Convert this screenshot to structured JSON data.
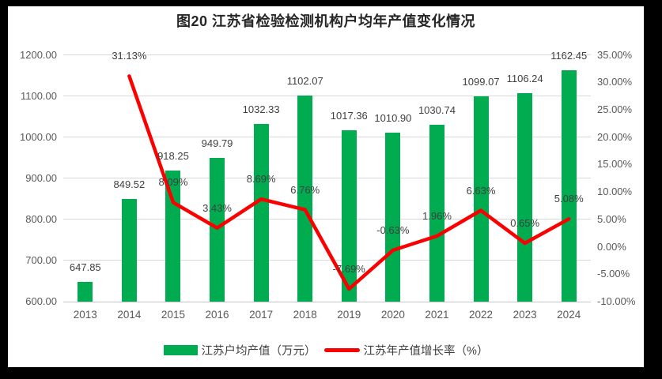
{
  "title": "图20  江苏省检验检测机构户均年产值变化情况",
  "colors": {
    "background": "#000000",
    "canvas": "#ffffff",
    "bar": "#00AC4F",
    "line": "#FB0000",
    "grid": "#d9d9d9",
    "axis_text": "#595959",
    "label_text": "#404040"
  },
  "legend": {
    "items": [
      {
        "label": "江苏户均产值（万元）",
        "type": "bar",
        "color": "#00AC4F"
      },
      {
        "label": "江苏年产值增长率（%）",
        "type": "line",
        "color": "#FB0000"
      }
    ]
  },
  "chart_data": {
    "type": "bar+line combo",
    "title": "图20  江苏省检验检测机构户均年产值变化情况",
    "categories": [
      "2013",
      "2014",
      "2015",
      "2016",
      "2017",
      "2018",
      "2019",
      "2020",
      "2021",
      "2022",
      "2023",
      "2024"
    ],
    "series": [
      {
        "name": "江苏户均产值（万元）",
        "type": "bar",
        "axis": "left",
        "color": "#00AC4F",
        "values": [
          647.85,
          849.52,
          918.25,
          949.79,
          1032.33,
          1102.07,
          1017.36,
          1010.9,
          1030.74,
          1099.07,
          1106.24,
          1162.45
        ],
        "labels": [
          "647.85",
          "849.52",
          "918.25",
          "949.79",
          "1032.33",
          "1102.07",
          "1017.36",
          "1010.90",
          "1030.74",
          "1099.07",
          "1106.24",
          "1162.45"
        ]
      },
      {
        "name": "江苏年产值增长率（%）",
        "type": "line",
        "axis": "right",
        "color": "#FB0000",
        "values": [
          null,
          31.13,
          8.09,
          3.43,
          8.69,
          6.76,
          -7.69,
          -0.63,
          1.96,
          6.63,
          0.65,
          5.08
        ],
        "labels": [
          "",
          "31.13%",
          "8.09%",
          "3.43%",
          "8.69%",
          "6.76%",
          "-7.69%",
          "-0.63%",
          "1.96%",
          "6.63%",
          "0.65%",
          "5.08%"
        ]
      }
    ],
    "left_axis": {
      "min": 600,
      "max": 1200,
      "step": 100,
      "ticks": [
        "1200.00",
        "1100.00",
        "1000.00",
        "900.00",
        "800.00",
        "700.00",
        "600.00"
      ]
    },
    "right_axis": {
      "min": -10,
      "max": 35,
      "step": 5,
      "ticks": [
        "35.00%",
        "30.00%",
        "25.00%",
        "20.00%",
        "15.00%",
        "10.00%",
        "5.00%",
        "0.00%",
        "-5.00%",
        "-10.00%"
      ]
    },
    "grid": true,
    "legend_position": "bottom"
  }
}
